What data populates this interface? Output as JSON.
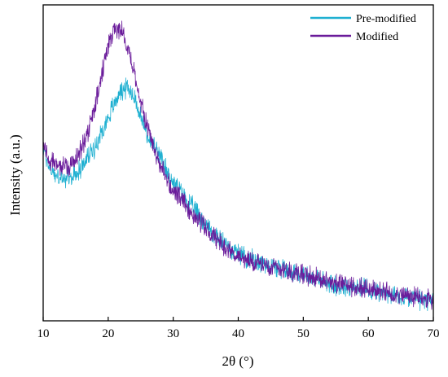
{
  "chart_data": {
    "type": "line",
    "title": "",
    "xlabel": "2θ (°)",
    "ylabel": "Intensity (a.u.)",
    "xlim": [
      10,
      70
    ],
    "ylim": [
      0,
      1
    ],
    "x_ticks": [
      10,
      20,
      30,
      40,
      50,
      60,
      70
    ],
    "y_ticks": [],
    "grid": false,
    "legend_position": "top-right",
    "series": [
      {
        "name": "Pre-modified",
        "color": "#1fb0d1",
        "x": [
          10,
          11,
          12,
          13,
          14,
          15,
          16,
          17,
          18,
          19,
          20,
          21,
          22,
          23,
          24,
          25,
          26,
          27,
          28,
          29,
          30,
          32,
          34,
          36,
          38,
          40,
          42,
          45,
          50,
          55,
          60,
          65,
          70
        ],
        "y": [
          0.55,
          0.49,
          0.46,
          0.45,
          0.45,
          0.47,
          0.49,
          0.53,
          0.56,
          0.61,
          0.66,
          0.71,
          0.75,
          0.76,
          0.73,
          0.66,
          0.6,
          0.56,
          0.52,
          0.48,
          0.44,
          0.38,
          0.33,
          0.27,
          0.23,
          0.2,
          0.18,
          0.16,
          0.13,
          0.09,
          0.08,
          0.05,
          0.04
        ]
      },
      {
        "name": "Modified",
        "color": "#6a1b9a",
        "x": [
          10,
          11,
          12,
          13,
          14,
          15,
          16,
          17,
          18,
          19,
          20,
          21,
          22,
          23,
          24,
          25,
          26,
          27,
          28,
          29,
          30,
          32,
          34,
          36,
          38,
          40,
          42,
          45,
          50,
          55,
          60,
          65,
          70
        ],
        "y": [
          0.56,
          0.52,
          0.5,
          0.49,
          0.49,
          0.52,
          0.56,
          0.61,
          0.7,
          0.8,
          0.9,
          0.96,
          0.96,
          0.9,
          0.81,
          0.71,
          0.63,
          0.56,
          0.5,
          0.45,
          0.41,
          0.36,
          0.31,
          0.26,
          0.22,
          0.19,
          0.17,
          0.16,
          0.13,
          0.1,
          0.08,
          0.06,
          0.04
        ]
      }
    ]
  }
}
